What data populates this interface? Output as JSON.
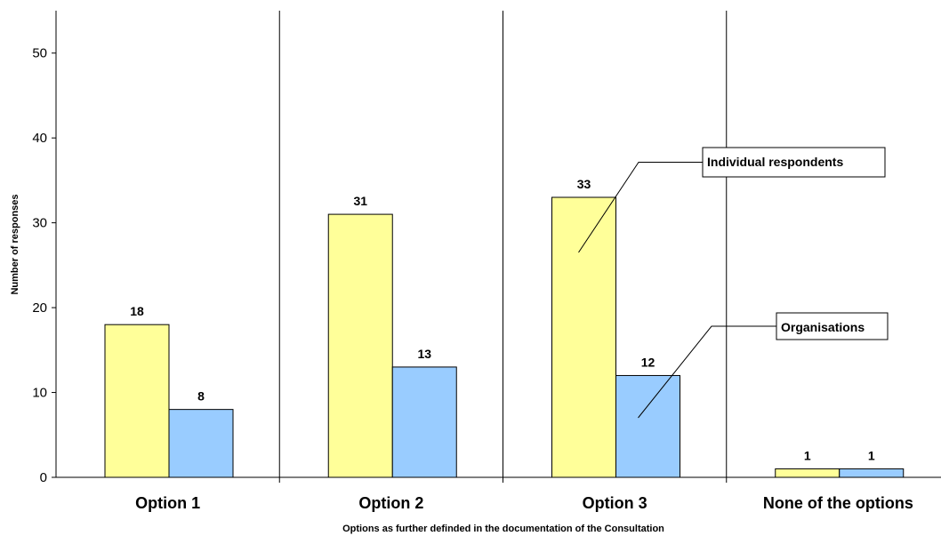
{
  "chart_data": {
    "type": "bar",
    "categories": [
      "Option 1",
      "Option 2",
      "Option 3",
      "None of the options"
    ],
    "series": [
      {
        "name": "Individual respondents",
        "values": [
          18,
          31,
          33,
          1
        ],
        "color": "#FFFF99"
      },
      {
        "name": "Organisations",
        "values": [
          8,
          13,
          12,
          1
        ],
        "color": "#99CCFF"
      }
    ],
    "xlabel": "Options as further definded in the documentation of the Consultation",
    "ylabel": "Number of responses",
    "ylim": [
      0,
      55
    ],
    "yticks": [
      0,
      10,
      20,
      30,
      40,
      50
    ],
    "grid": false,
    "category_separators": true,
    "data_labels": true,
    "legend": "callouts"
  }
}
